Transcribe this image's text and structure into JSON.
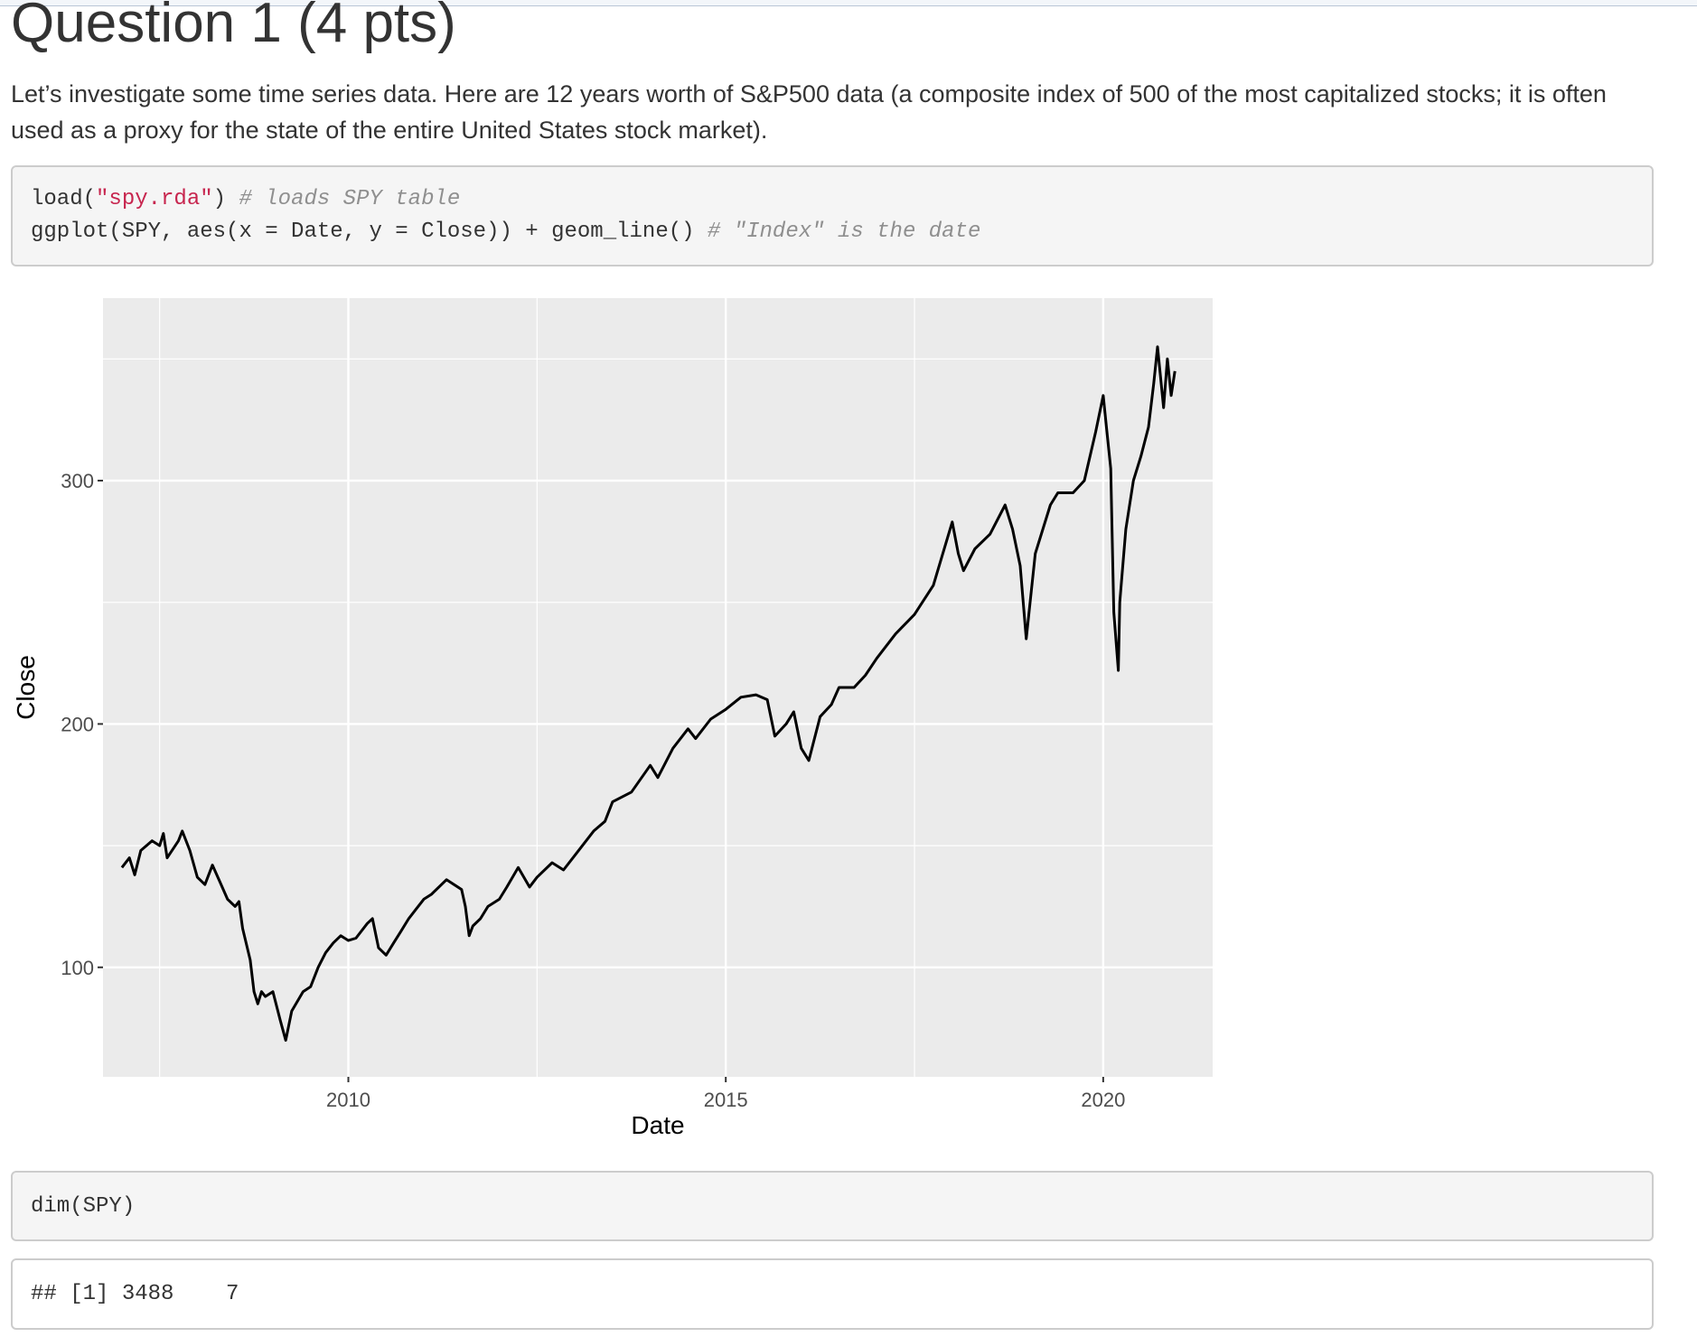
{
  "heading": "Question 1 (4 pts)",
  "intro": "Let’s investigate some time series data. Here are 12 years worth of S&P500 data (a composite index of 500 of the most capitalized stocks; it is often used as a proxy for the state of the entire United States stock market).",
  "code1": {
    "l1_a": "load(",
    "l1_str": "\"spy.rda\"",
    "l1_b": ") ",
    "l1_cmt": "# loads SPY table",
    "l2_a": "ggplot(SPY, aes(x = Date, y = Close)) + geom_line() ",
    "l2_cmt": "# \"Index\" is the date"
  },
  "code2": {
    "line": "dim(SPY)"
  },
  "output": {
    "line": "## [1] 3488    7"
  },
  "chart_data": {
    "type": "line",
    "title": "",
    "xlabel": "Date",
    "ylabel": "Close",
    "xlim": [
      2006.75,
      2021.45
    ],
    "ylim": [
      55,
      375
    ],
    "xticks": [
      2010,
      2015,
      2020
    ],
    "yticks": [
      100,
      200,
      300
    ],
    "grid": true,
    "background": "#ebebeb",
    "line_color": "#000000",
    "series": [
      {
        "x": [
          2007.0,
          2007.1,
          2007.17,
          2007.25,
          2007.4,
          2007.5,
          2007.55,
          2007.6,
          2007.75,
          2007.8,
          2007.9,
          2008.0,
          2008.1,
          2008.2,
          2008.3,
          2008.4,
          2008.5,
          2008.55,
          2008.6,
          2008.7,
          2008.75,
          2008.8,
          2008.85,
          2008.9,
          2009.0,
          2009.1,
          2009.17,
          2009.25,
          2009.4,
          2009.5,
          2009.6,
          2009.7,
          2009.8,
          2009.9,
          2010.0,
          2010.1,
          2010.25,
          2010.32,
          2010.4,
          2010.5,
          2010.6,
          2010.7,
          2010.8,
          2010.9,
          2011.0,
          2011.1,
          2011.3,
          2011.5,
          2011.55,
          2011.6,
          2011.65,
          2011.75,
          2011.85,
          2012.0,
          2012.1,
          2012.25,
          2012.4,
          2012.5,
          2012.7,
          2012.85,
          2013.0,
          2013.25,
          2013.4,
          2013.5,
          2013.75,
          2014.0,
          2014.1,
          2014.3,
          2014.5,
          2014.6,
          2014.8,
          2015.0,
          2015.2,
          2015.4,
          2015.55,
          2015.65,
          2015.8,
          2015.9,
          2016.0,
          2016.1,
          2016.25,
          2016.4,
          2016.5,
          2016.7,
          2016.85,
          2017.0,
          2017.25,
          2017.5,
          2017.75,
          2018.0,
          2018.08,
          2018.15,
          2018.3,
          2018.5,
          2018.7,
          2018.8,
          2018.9,
          2018.98,
          2019.1,
          2019.3,
          2019.4,
          2019.6,
          2019.75,
          2019.9,
          2020.0,
          2020.05,
          2020.1,
          2020.14,
          2020.2,
          2020.22,
          2020.3,
          2020.4,
          2020.5,
          2020.6,
          2020.67,
          2020.72,
          2020.8,
          2020.85,
          2020.9,
          2020.95
        ],
        "y": [
          141,
          145,
          138,
          148,
          152,
          150,
          155,
          145,
          152,
          156,
          148,
          137,
          134,
          142,
          135,
          128,
          125,
          127,
          116,
          103,
          90,
          85,
          90,
          88,
          90,
          78,
          70,
          82,
          90,
          92,
          100,
          106,
          110,
          113,
          111,
          112,
          118,
          120,
          108,
          105,
          110,
          115,
          120,
          124,
          128,
          130,
          136,
          132,
          125,
          113,
          117,
          120,
          125,
          128,
          133,
          141,
          133,
          137,
          143,
          140,
          146,
          156,
          160,
          168,
          172,
          183,
          178,
          190,
          198,
          194,
          202,
          206,
          211,
          212,
          210,
          195,
          200,
          205,
          190,
          185,
          203,
          208,
          215,
          215,
          220,
          227,
          237,
          245,
          257,
          283,
          270,
          263,
          272,
          278,
          290,
          280,
          265,
          235,
          270,
          290,
          295,
          295,
          300,
          320,
          335,
          320,
          305,
          246,
          222,
          250,
          280,
          300,
          310,
          322,
          340,
          355,
          330,
          350,
          335,
          345
        ]
      }
    ]
  }
}
